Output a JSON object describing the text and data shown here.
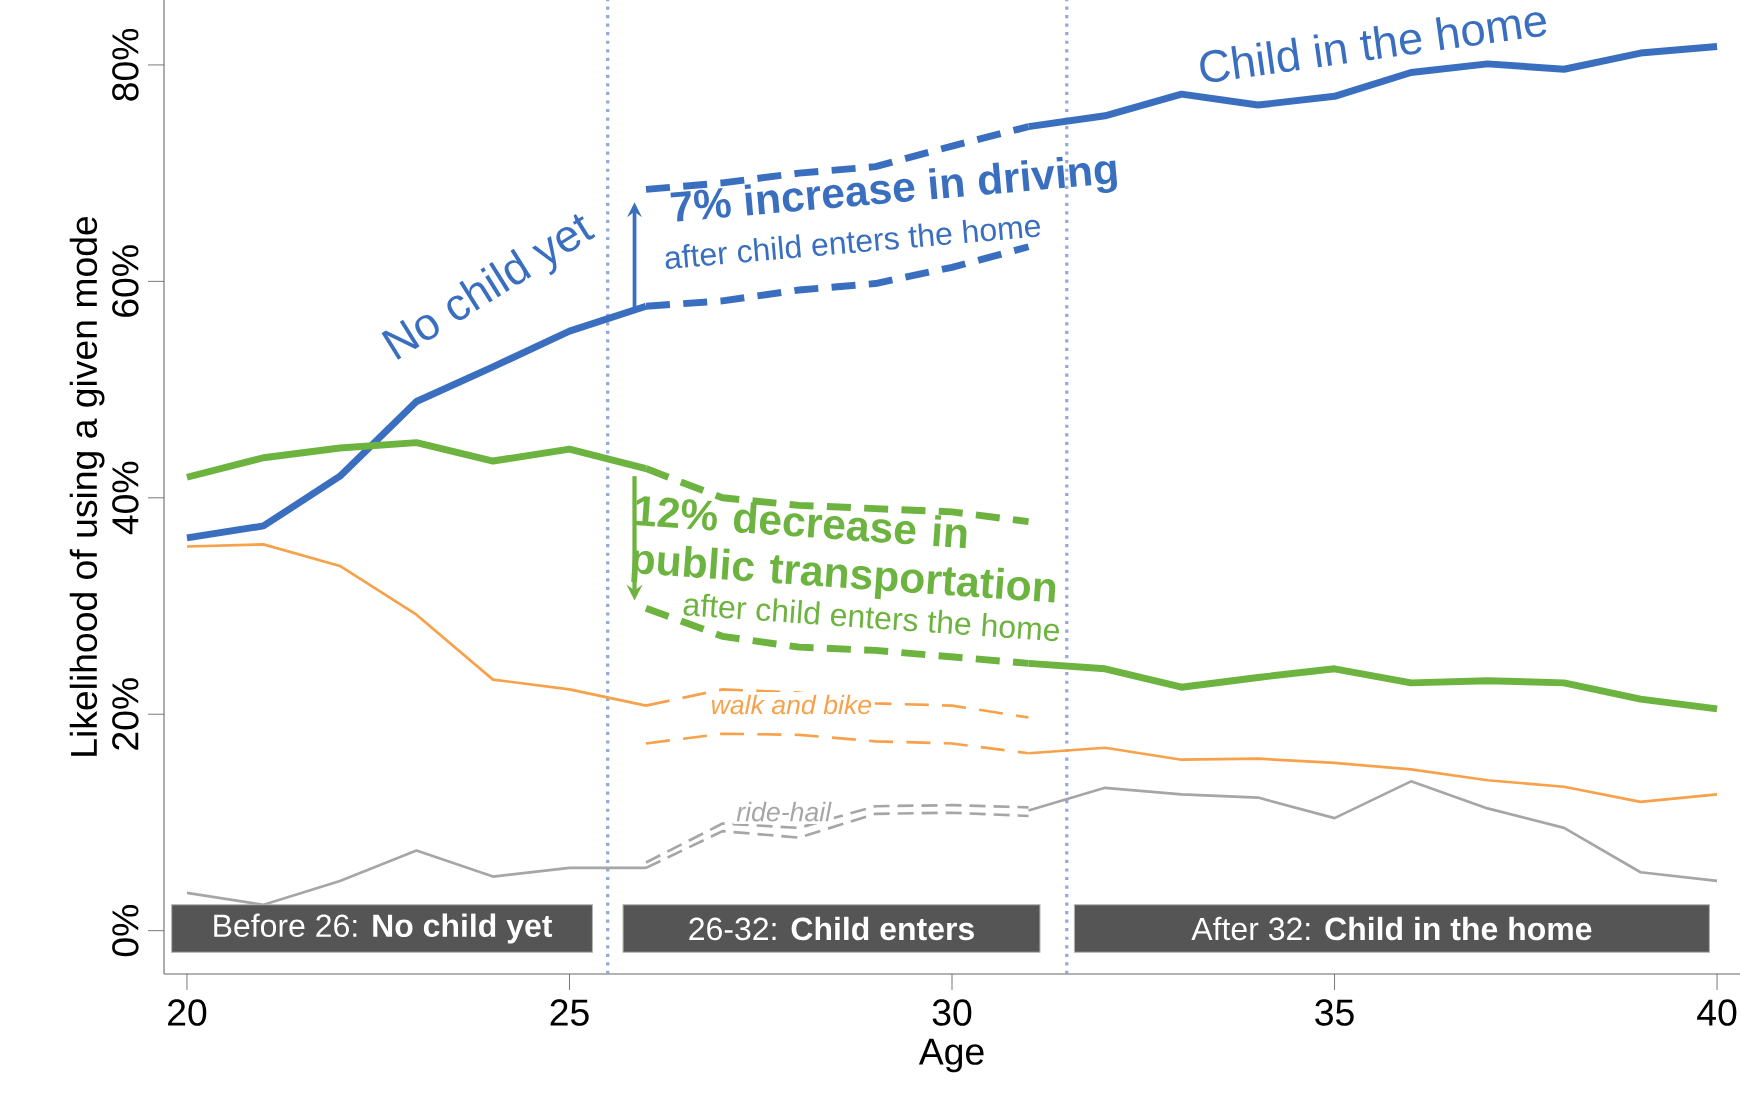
{
  "chart_data": {
    "type": "line",
    "xlabel": "Age",
    "ylabel": "Likelihood of using a given mode",
    "xlim": [
      19.7,
      40.3
    ],
    "ylim": [
      -4,
      86
    ],
    "xticks": [
      20,
      25,
      30,
      35,
      40
    ],
    "yticks": [
      {
        "value": 0,
        "label": "0%"
      },
      {
        "value": 20,
        "label": "20%"
      },
      {
        "value": 40,
        "label": "40%"
      },
      {
        "value": 60,
        "label": "60%"
      },
      {
        "value": 80,
        "label": "80%"
      }
    ],
    "grid": false,
    "series": [
      {
        "color": "#3a6fc0",
        "line_style": "solid",
        "x": [
          20,
          21,
          22,
          23,
          24,
          25,
          26,
          27,
          28,
          29,
          30,
          31,
          32,
          33,
          34,
          35,
          36,
          37,
          38,
          39,
          40
        ],
        "values": [
          36.3,
          37.4,
          42.0,
          48.9,
          52.1,
          55.4,
          57.7,
          null,
          null,
          null,
          null,
          74.3,
          75.3,
          77.3,
          76.3,
          77.1,
          79.3,
          80.1,
          79.6,
          81.1,
          81.7
        ]
      },
      {
        "color": "#3a6fc0",
        "line_style": "dashed",
        "x": [
          26,
          27,
          28,
          29,
          30,
          31
        ],
        "values": [
          68.5,
          69.1,
          70.0,
          70.6,
          72.5,
          74.3
        ]
      },
      {
        "color": "#3a6fc0",
        "line_style": "dashed",
        "x": [
          26,
          27,
          28,
          29,
          30,
          31
        ],
        "values": [
          57.7,
          58.2,
          59.2,
          59.8,
          61.3,
          63.2
        ]
      },
      {
        "color": "#6db33f",
        "line_style": "solid",
        "x": [
          20,
          21,
          22,
          23,
          24,
          25,
          26,
          27,
          28,
          29,
          30,
          31,
          32,
          33,
          34,
          35,
          36,
          37,
          38,
          39,
          40
        ],
        "values": [
          41.9,
          43.7,
          44.6,
          45.1,
          43.4,
          44.5,
          42.7,
          null,
          null,
          null,
          null,
          24.7,
          24.2,
          22.5,
          23.4,
          24.2,
          22.9,
          23.1,
          22.9,
          21.4,
          20.5
        ]
      },
      {
        "color": "#6db33f",
        "line_style": "dashed",
        "x": [
          26,
          27,
          28,
          29,
          30,
          31
        ],
        "values": [
          42.7,
          40.0,
          39.3,
          39.0,
          38.7,
          37.8
        ]
      },
      {
        "color": "#6db33f",
        "line_style": "dashed",
        "x": [
          26,
          27,
          28,
          29,
          30,
          31
        ],
        "values": [
          29.8,
          27.2,
          26.2,
          25.9,
          25.3,
          24.7
        ]
      },
      {
        "name": "walk and bike",
        "color": "#f7a14a",
        "line_style": "solid",
        "x": [
          20,
          21,
          22,
          23,
          24,
          25,
          26,
          27,
          28,
          29,
          30,
          31,
          32,
          33,
          34,
          35,
          36,
          37,
          38,
          39,
          40
        ],
        "values": [
          35.5,
          35.7,
          33.7,
          29.2,
          23.2,
          22.3,
          20.8,
          null,
          null,
          null,
          null,
          16.4,
          16.9,
          15.8,
          15.9,
          15.5,
          14.9,
          13.9,
          13.3,
          11.9,
          12.6
        ]
      },
      {
        "color": "#f7a14a",
        "line_style": "dashed",
        "x": [
          26,
          27,
          28,
          29,
          30,
          31
        ],
        "values": [
          20.8,
          22.3,
          22.0,
          21.0,
          20.8,
          19.7
        ]
      },
      {
        "color": "#f7a14a",
        "line_style": "dashed",
        "x": [
          26,
          27,
          28,
          29,
          30,
          31
        ],
        "values": [
          17.3,
          18.2,
          18.1,
          17.5,
          17.3,
          16.4
        ]
      },
      {
        "name": "ride-hail",
        "color": "#a6a6a6",
        "line_style": "solid",
        "x": [
          20,
          21,
          22,
          23,
          24,
          25,
          26,
          27,
          28,
          29,
          30,
          31,
          32,
          33,
          34,
          35,
          36,
          37,
          38,
          39,
          40
        ],
        "values": [
          3.5,
          2.4,
          4.6,
          7.4,
          5.0,
          5.8,
          5.8,
          null,
          null,
          null,
          null,
          11.1,
          13.2,
          12.6,
          12.3,
          10.4,
          13.8,
          11.3,
          9.5,
          5.4,
          4.6
        ]
      },
      {
        "color": "#a6a6a6",
        "line_style": "dashed",
        "x": [
          26,
          27,
          28,
          29,
          30,
          31
        ],
        "values": [
          6.3,
          9.9,
          9.5,
          11.5,
          11.6,
          11.4
        ]
      },
      {
        "color": "#a6a6a6",
        "line_style": "dashed",
        "x": [
          26,
          27,
          28,
          29,
          30,
          31
        ],
        "values": [
          5.8,
          9.2,
          8.6,
          10.8,
          10.9,
          10.6
        ]
      }
    ],
    "ref_lines": [
      {
        "axis": "x",
        "value": 25.5,
        "color": "#8fa8e0",
        "line_style": "dotted"
      },
      {
        "axis": "x",
        "value": 31.5,
        "color": "#8fa8e0",
        "line_style": "dotted"
      }
    ],
    "bands": [
      {
        "axis": "x",
        "from": 19.8,
        "to": 25.3,
        "label": "Before 26: **No child yet**",
        "color": "#555555"
      },
      {
        "axis": "x",
        "from": 25.7,
        "to": 31.15,
        "label": "26-32: **Child enters**",
        "color": "#555555"
      },
      {
        "axis": "x",
        "from": 31.6,
        "to": 39.9,
        "label": "After 32: **Child in the home**",
        "color": "#555555"
      }
    ],
    "annotations": [
      "No child yet",
      "Child in the home",
      "7% increase in driving",
      "after child enters the home",
      "12% decrease in public transportation",
      "after child enters the home"
    ]
  }
}
